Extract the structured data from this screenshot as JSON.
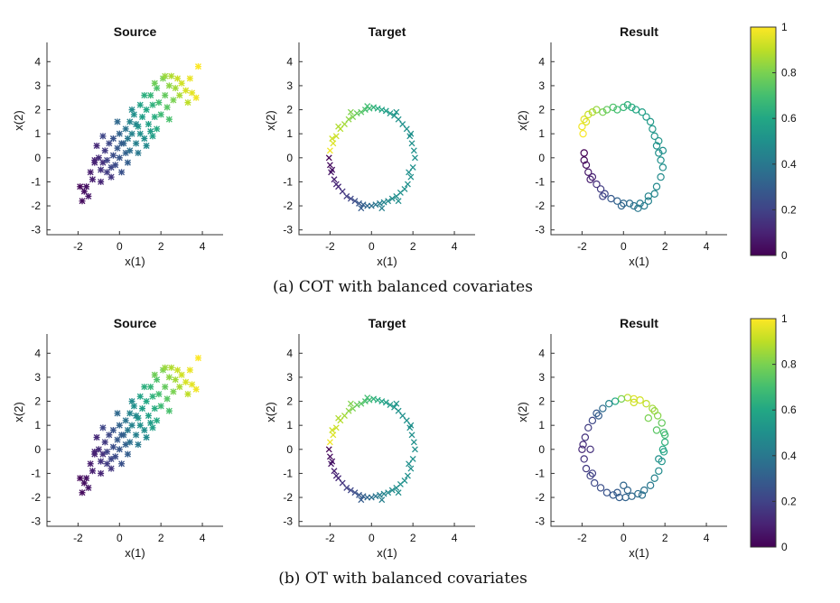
{
  "chart_data": {
    "type": "scatter",
    "colormap": "viridis",
    "axes_template": {
      "xlabel": "x(1)",
      "ylabel": "x(2)",
      "xlim": [
        -3.5,
        5
      ],
      "ylim": [
        -3.2,
        4.8
      ],
      "xticks": [
        "-2",
        "0",
        "2",
        "4"
      ],
      "yticks": [
        "4",
        "3",
        "2",
        "1",
        "0",
        "-1",
        "-2",
        "-3"
      ],
      "grid": false
    },
    "colorbar": {
      "min": 0,
      "max": 1,
      "ticks": [
        "1",
        "0.8",
        "0.6",
        "0.4",
        "0.2",
        "0"
      ]
    },
    "rows": [
      {
        "caption": "(a) COT with balanced covariates",
        "panels": [
          {
            "title": "Source",
            "marker": "asterisk",
            "data": "source"
          },
          {
            "title": "Target",
            "marker": "x",
            "data": "target"
          },
          {
            "title": "Result",
            "marker": "circle",
            "data": "result_cot"
          }
        ]
      },
      {
        "caption": "(b) OT with balanced covariates",
        "panels": [
          {
            "title": "Source",
            "marker": "asterisk",
            "data": "source"
          },
          {
            "title": "Target",
            "marker": "x",
            "data": "target"
          },
          {
            "title": "Result",
            "marker": "circle",
            "data": "result_ot"
          }
        ]
      }
    ],
    "series": {
      "source": [
        [
          -1.9,
          -1.2,
          0.02
        ],
        [
          -1.7,
          -1.4,
          0.04
        ],
        [
          -1.8,
          -1.8,
          0.03
        ],
        [
          -1.5,
          -1.6,
          0.06
        ],
        [
          -1.6,
          -1.2,
          0.05
        ],
        [
          -1.4,
          -0.6,
          0.08
        ],
        [
          -1.2,
          -0.2,
          0.1
        ],
        [
          -1.3,
          -0.9,
          0.09
        ],
        [
          -1.0,
          0.0,
          0.13
        ],
        [
          -0.9,
          -0.5,
          0.15
        ],
        [
          -0.8,
          -0.2,
          0.14
        ],
        [
          -1.1,
          0.5,
          0.12
        ],
        [
          -0.7,
          0.3,
          0.17
        ],
        [
          -0.6,
          -0.1,
          0.2
        ],
        [
          -0.5,
          0.6,
          0.22
        ],
        [
          -0.6,
          -0.6,
          0.18
        ],
        [
          -0.4,
          -0.4,
          0.21
        ],
        [
          -0.3,
          0.1,
          0.24
        ],
        [
          -0.3,
          0.8,
          0.26
        ],
        [
          -0.2,
          -0.3,
          0.23
        ],
        [
          -0.1,
          0.4,
          0.28
        ],
        [
          0.0,
          1.0,
          0.32
        ],
        [
          0.0,
          0.0,
          0.27
        ],
        [
          0.1,
          -0.6,
          0.25
        ],
        [
          0.2,
          0.6,
          0.33
        ],
        [
          0.3,
          0.2,
          0.31
        ],
        [
          0.3,
          1.2,
          0.38
        ],
        [
          0.4,
          0.8,
          0.4
        ],
        [
          0.5,
          1.5,
          0.45
        ],
        [
          0.5,
          0.3,
          0.36
        ],
        [
          0.6,
          1.0,
          0.44
        ],
        [
          0.7,
          1.8,
          0.5
        ],
        [
          0.8,
          0.6,
          0.43
        ],
        [
          0.9,
          1.3,
          0.52
        ],
        [
          1.0,
          2.2,
          0.58
        ],
        [
          1.0,
          1.0,
          0.5
        ],
        [
          1.1,
          1.7,
          0.56
        ],
        [
          1.2,
          0.8,
          0.49
        ],
        [
          1.3,
          2.0,
          0.6
        ],
        [
          1.4,
          1.4,
          0.57
        ],
        [
          1.5,
          2.6,
          0.66
        ],
        [
          1.5,
          1.1,
          0.55
        ],
        [
          1.6,
          2.2,
          0.64
        ],
        [
          1.7,
          1.7,
          0.62
        ],
        [
          1.8,
          2.9,
          0.72
        ],
        [
          1.9,
          2.3,
          0.7
        ],
        [
          2.0,
          1.8,
          0.68
        ],
        [
          2.1,
          3.3,
          0.8
        ],
        [
          2.2,
          2.6,
          0.76
        ],
        [
          2.3,
          2.1,
          0.74
        ],
        [
          2.4,
          3.0,
          0.83
        ],
        [
          2.5,
          3.4,
          0.88
        ],
        [
          2.6,
          2.4,
          0.8
        ],
        [
          2.7,
          2.9,
          0.86
        ],
        [
          2.8,
          3.3,
          0.92
        ],
        [
          2.9,
          2.6,
          0.87
        ],
        [
          3.0,
          3.1,
          0.93
        ],
        [
          3.2,
          2.8,
          0.94
        ],
        [
          3.3,
          2.3,
          0.9
        ],
        [
          3.5,
          2.7,
          0.96
        ],
        [
          3.7,
          2.5,
          0.98
        ],
        [
          3.8,
          3.8,
          1.0
        ],
        [
          3.4,
          3.3,
          0.97
        ],
        [
          -0.9,
          -1.0,
          0.11
        ],
        [
          -0.4,
          -0.8,
          0.16
        ],
        [
          0.4,
          -0.2,
          0.3
        ],
        [
          0.9,
          0.2,
          0.4
        ],
        [
          1.3,
          0.5,
          0.47
        ],
        [
          1.8,
          1.2,
          0.61
        ],
        [
          2.4,
          1.6,
          0.71
        ],
        [
          -1.2,
          -0.1,
          0.1
        ],
        [
          -0.8,
          0.9,
          0.21
        ],
        [
          -0.1,
          1.5,
          0.34
        ],
        [
          0.6,
          2.0,
          0.48
        ],
        [
          1.2,
          2.6,
          0.63
        ],
        [
          1.7,
          3.1,
          0.78
        ],
        [
          2.2,
          3.4,
          0.85
        ],
        [
          0.1,
          0.6,
          0.3
        ],
        [
          0.8,
          1.4,
          0.47
        ],
        [
          1.6,
          0.9,
          0.56
        ]
      ],
      "target": [
        [
          -2.05,
          0.0,
          0.0
        ],
        [
          -2.0,
          -0.3,
          0.03
        ],
        [
          -2.0,
          0.3,
          0.98
        ],
        [
          -1.95,
          -0.6,
          0.06
        ],
        [
          -1.85,
          0.6,
          0.95
        ],
        [
          -1.8,
          -0.9,
          0.09
        ],
        [
          -1.7,
          0.9,
          0.92
        ],
        [
          -1.6,
          -1.2,
          0.12
        ],
        [
          -1.5,
          1.2,
          0.89
        ],
        [
          -1.4,
          -1.4,
          0.15
        ],
        [
          -1.3,
          1.4,
          0.86
        ],
        [
          -1.2,
          -1.6,
          0.18
        ],
        [
          -1.1,
          1.6,
          0.83
        ],
        [
          -1.0,
          -1.7,
          0.21
        ],
        [
          -0.9,
          1.7,
          0.8
        ],
        [
          -0.8,
          -1.8,
          0.24
        ],
        [
          -0.7,
          1.85,
          0.77
        ],
        [
          -0.6,
          -1.9,
          0.27
        ],
        [
          -0.5,
          1.9,
          0.74
        ],
        [
          -0.4,
          -1.95,
          0.3
        ],
        [
          -0.3,
          2.0,
          0.71
        ],
        [
          -0.2,
          -2.0,
          0.33
        ],
        [
          -0.1,
          2.05,
          0.68
        ],
        [
          0.0,
          -2.0,
          0.36
        ],
        [
          0.1,
          2.1,
          0.65
        ],
        [
          0.2,
          -1.95,
          0.39
        ],
        [
          0.3,
          2.05,
          0.62
        ],
        [
          0.4,
          -1.9,
          0.42
        ],
        [
          0.5,
          2.0,
          0.59
        ],
        [
          0.6,
          -1.85,
          0.45
        ],
        [
          0.7,
          1.95,
          0.56
        ],
        [
          0.8,
          -1.8,
          0.47
        ],
        [
          0.9,
          1.85,
          0.54
        ],
        [
          1.0,
          -1.7,
          0.48
        ],
        [
          1.1,
          1.75,
          0.52
        ],
        [
          1.2,
          -1.6,
          0.49
        ],
        [
          1.3,
          1.6,
          0.51
        ],
        [
          1.4,
          -1.45,
          0.5
        ],
        [
          1.5,
          1.4,
          0.5
        ],
        [
          1.6,
          -1.3,
          0.5
        ],
        [
          1.7,
          1.2,
          0.5
        ],
        [
          1.75,
          -1.1,
          0.5
        ],
        [
          1.85,
          0.9,
          0.5
        ],
        [
          1.9,
          -0.8,
          0.5
        ],
        [
          1.95,
          0.6,
          0.5
        ],
        [
          2.0,
          -0.4,
          0.5
        ],
        [
          2.05,
          0.3,
          0.5
        ],
        [
          2.1,
          0.0,
          0.5
        ],
        [
          -1.9,
          -0.5,
          0.05
        ],
        [
          -1.7,
          -1.1,
          0.11
        ],
        [
          -1.9,
          0.8,
          0.93
        ],
        [
          -1.6,
          1.3,
          0.88
        ],
        [
          -0.5,
          -2.1,
          0.29
        ],
        [
          0.5,
          -2.1,
          0.43
        ],
        [
          1.3,
          -1.8,
          0.49
        ],
        [
          1.8,
          -0.6,
          0.5
        ],
        [
          1.9,
          1.0,
          0.5
        ],
        [
          1.2,
          1.9,
          0.52
        ],
        [
          -0.2,
          2.15,
          0.69
        ],
        [
          -1.0,
          1.9,
          0.81
        ]
      ],
      "result_cot": [
        [
          -2.0,
          1.3,
          0.98
        ],
        [
          -1.9,
          1.6,
          0.96
        ],
        [
          -1.8,
          1.5,
          0.95
        ],
        [
          -1.7,
          1.8,
          0.92
        ],
        [
          -1.95,
          1.0,
          0.99
        ],
        [
          -1.5,
          1.9,
          0.88
        ],
        [
          -1.3,
          2.0,
          0.84
        ],
        [
          -1.0,
          1.9,
          0.8
        ],
        [
          -0.8,
          2.0,
          0.76
        ],
        [
          -0.5,
          2.1,
          0.72
        ],
        [
          -0.3,
          2.0,
          0.7
        ],
        [
          0.0,
          2.1,
          0.66
        ],
        [
          0.2,
          2.2,
          0.64
        ],
        [
          0.4,
          2.1,
          0.62
        ],
        [
          0.6,
          2.0,
          0.6
        ],
        [
          0.9,
          1.9,
          0.57
        ],
        [
          1.1,
          1.7,
          0.55
        ],
        [
          1.3,
          1.5,
          0.54
        ],
        [
          1.4,
          1.2,
          0.53
        ],
        [
          1.5,
          0.9,
          0.52
        ],
        [
          1.6,
          0.5,
          0.51
        ],
        [
          1.7,
          0.2,
          0.5
        ],
        [
          1.8,
          -0.1,
          0.5
        ],
        [
          1.9,
          -0.4,
          0.49
        ],
        [
          1.8,
          -0.8,
          0.48
        ],
        [
          1.6,
          -1.2,
          0.47
        ],
        [
          1.5,
          -1.5,
          0.46
        ],
        [
          1.2,
          -1.8,
          0.44
        ],
        [
          1.0,
          -2.0,
          0.42
        ],
        [
          0.7,
          -2.1,
          0.4
        ],
        [
          0.5,
          -2.0,
          0.38
        ],
        [
          0.3,
          -1.9,
          0.36
        ],
        [
          0.0,
          -1.9,
          0.34
        ],
        [
          -0.3,
          -1.8,
          0.32
        ],
        [
          -0.6,
          -1.7,
          0.28
        ],
        [
          -0.9,
          -1.5,
          0.22
        ],
        [
          -1.1,
          -1.3,
          0.18
        ],
        [
          -1.3,
          -1.1,
          0.14
        ],
        [
          -1.5,
          -0.8,
          0.1
        ],
        [
          -1.7,
          -0.6,
          0.07
        ],
        [
          -1.8,
          -0.3,
          0.04
        ],
        [
          -1.9,
          -0.1,
          0.02
        ],
        [
          -1.9,
          0.2,
          0.0
        ],
        [
          1.9,
          0.3,
          0.5
        ],
        [
          1.7,
          0.7,
          0.52
        ],
        [
          1.2,
          -1.6,
          0.45
        ],
        [
          0.8,
          -1.9,
          0.41
        ],
        [
          -0.1,
          -2.0,
          0.33
        ],
        [
          -1.0,
          -1.6,
          0.2
        ],
        [
          -1.6,
          -0.9,
          0.09
        ]
      ],
      "result_ot": [
        [
          -2.0,
          0.0,
          0.12
        ],
        [
          -1.9,
          -0.4,
          0.15
        ],
        [
          -1.8,
          -0.8,
          0.17
        ],
        [
          -1.6,
          -1.1,
          0.2
        ],
        [
          -1.4,
          -1.4,
          0.22
        ],
        [
          -1.1,
          -1.6,
          0.24
        ],
        [
          -0.8,
          -1.8,
          0.26
        ],
        [
          -0.5,
          -1.9,
          0.28
        ],
        [
          -0.2,
          -2.0,
          0.3
        ],
        [
          0.1,
          -2.0,
          0.32
        ],
        [
          0.4,
          -1.95,
          0.34
        ],
        [
          0.7,
          -1.85,
          0.36
        ],
        [
          1.0,
          -1.7,
          0.38
        ],
        [
          1.3,
          -1.5,
          0.4
        ],
        [
          1.5,
          -1.2,
          0.44
        ],
        [
          1.7,
          -0.9,
          0.48
        ],
        [
          1.85,
          -0.5,
          0.52
        ],
        [
          1.95,
          -0.1,
          0.58
        ],
        [
          2.0,
          0.3,
          0.64
        ],
        [
          1.95,
          0.7,
          0.7
        ],
        [
          1.85,
          1.1,
          0.76
        ],
        [
          1.65,
          1.4,
          0.82
        ],
        [
          1.4,
          1.7,
          0.86
        ],
        [
          1.1,
          1.9,
          0.9
        ],
        [
          0.8,
          2.05,
          0.93
        ],
        [
          0.5,
          2.1,
          0.95
        ],
        [
          0.2,
          2.15,
          0.9
        ],
        [
          -0.1,
          2.1,
          0.8
        ],
        [
          -0.4,
          2.0,
          0.6
        ],
        [
          -0.7,
          1.9,
          0.45
        ],
        [
          -1.0,
          1.7,
          0.35
        ],
        [
          -1.3,
          1.5,
          0.28
        ],
        [
          -1.5,
          1.2,
          0.22
        ],
        [
          -1.7,
          0.9,
          0.18
        ],
        [
          -1.85,
          0.5,
          0.15
        ],
        [
          -1.95,
          0.2,
          0.13
        ],
        [
          1.6,
          0.8,
          0.74
        ],
        [
          1.9,
          0.0,
          0.6
        ],
        [
          0.0,
          -1.5,
          0.33
        ],
        [
          -1.5,
          -1.0,
          0.19
        ],
        [
          -0.3,
          -1.8,
          0.29
        ],
        [
          0.2,
          -1.7,
          0.33
        ],
        [
          1.2,
          1.3,
          0.8
        ],
        [
          0.5,
          1.95,
          0.92
        ],
        [
          -1.2,
          1.4,
          0.3
        ],
        [
          1.7,
          -0.4,
          0.5
        ],
        [
          2.0,
          0.6,
          0.68
        ],
        [
          -1.6,
          0.0,
          0.14
        ],
        [
          0.9,
          -1.9,
          0.37
        ],
        [
          1.5,
          1.6,
          0.84
        ]
      ]
    }
  }
}
